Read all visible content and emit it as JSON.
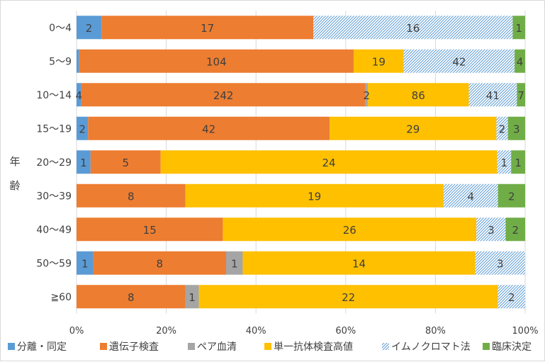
{
  "chart_data": {
    "type": "bar",
    "orientation": "horizontal",
    "stacked": "percent",
    "ylabel": "年齢",
    "categories": [
      "0〜4",
      "5〜9",
      "10〜14",
      "15〜19",
      "20〜29",
      "30〜39",
      "40〜49",
      "50〜59",
      "≧60"
    ],
    "series": [
      {
        "name": "分離・同定",
        "color": "#5b9bd5",
        "pattern": "solid",
        "values": [
          2,
          1,
          4,
          2,
          1,
          0,
          0,
          1,
          0
        ]
      },
      {
        "name": "遺伝子検査",
        "color": "#ed7d31",
        "pattern": "solid",
        "values": [
          17,
          104,
          242,
          42,
          5,
          8,
          15,
          8,
          8
        ]
      },
      {
        "name": "ペア血清",
        "color": "#a5a5a5",
        "pattern": "solid",
        "values": [
          0,
          0,
          2,
          0,
          0,
          0,
          0,
          1,
          1
        ]
      },
      {
        "name": "単一抗体検査高値",
        "color": "#ffc000",
        "pattern": "solid",
        "values": [
          0,
          19,
          86,
          29,
          24,
          19,
          26,
          14,
          22
        ]
      },
      {
        "name": "イムノクロマト法",
        "color": "#5b9bd5",
        "pattern": "hatch",
        "values": [
          16,
          42,
          41,
          2,
          1,
          4,
          3,
          3,
          2
        ]
      },
      {
        "name": "臨床決定",
        "color": "#70ad47",
        "pattern": "solid",
        "values": [
          1,
          4,
          7,
          3,
          1,
          2,
          2,
          0,
          0
        ]
      }
    ],
    "data_labels_shown": [
      [
        true,
        true,
        false,
        false,
        true,
        true
      ],
      [
        false,
        true,
        false,
        true,
        true,
        true
      ],
      [
        true,
        true,
        true,
        true,
        true,
        true
      ],
      [
        true,
        true,
        false,
        true,
        true,
        true
      ],
      [
        true,
        true,
        false,
        true,
        true,
        true
      ],
      [
        false,
        true,
        false,
        true,
        true,
        true
      ],
      [
        false,
        true,
        false,
        true,
        true,
        true
      ],
      [
        true,
        true,
        true,
        true,
        true,
        false
      ],
      [
        false,
        true,
        true,
        true,
        true,
        false
      ]
    ],
    "xlim": [
      0,
      100
    ],
    "xticks": [
      "0%",
      "20%",
      "40%",
      "60%",
      "80%",
      "100%"
    ],
    "grid": true,
    "legend": "bottom"
  }
}
